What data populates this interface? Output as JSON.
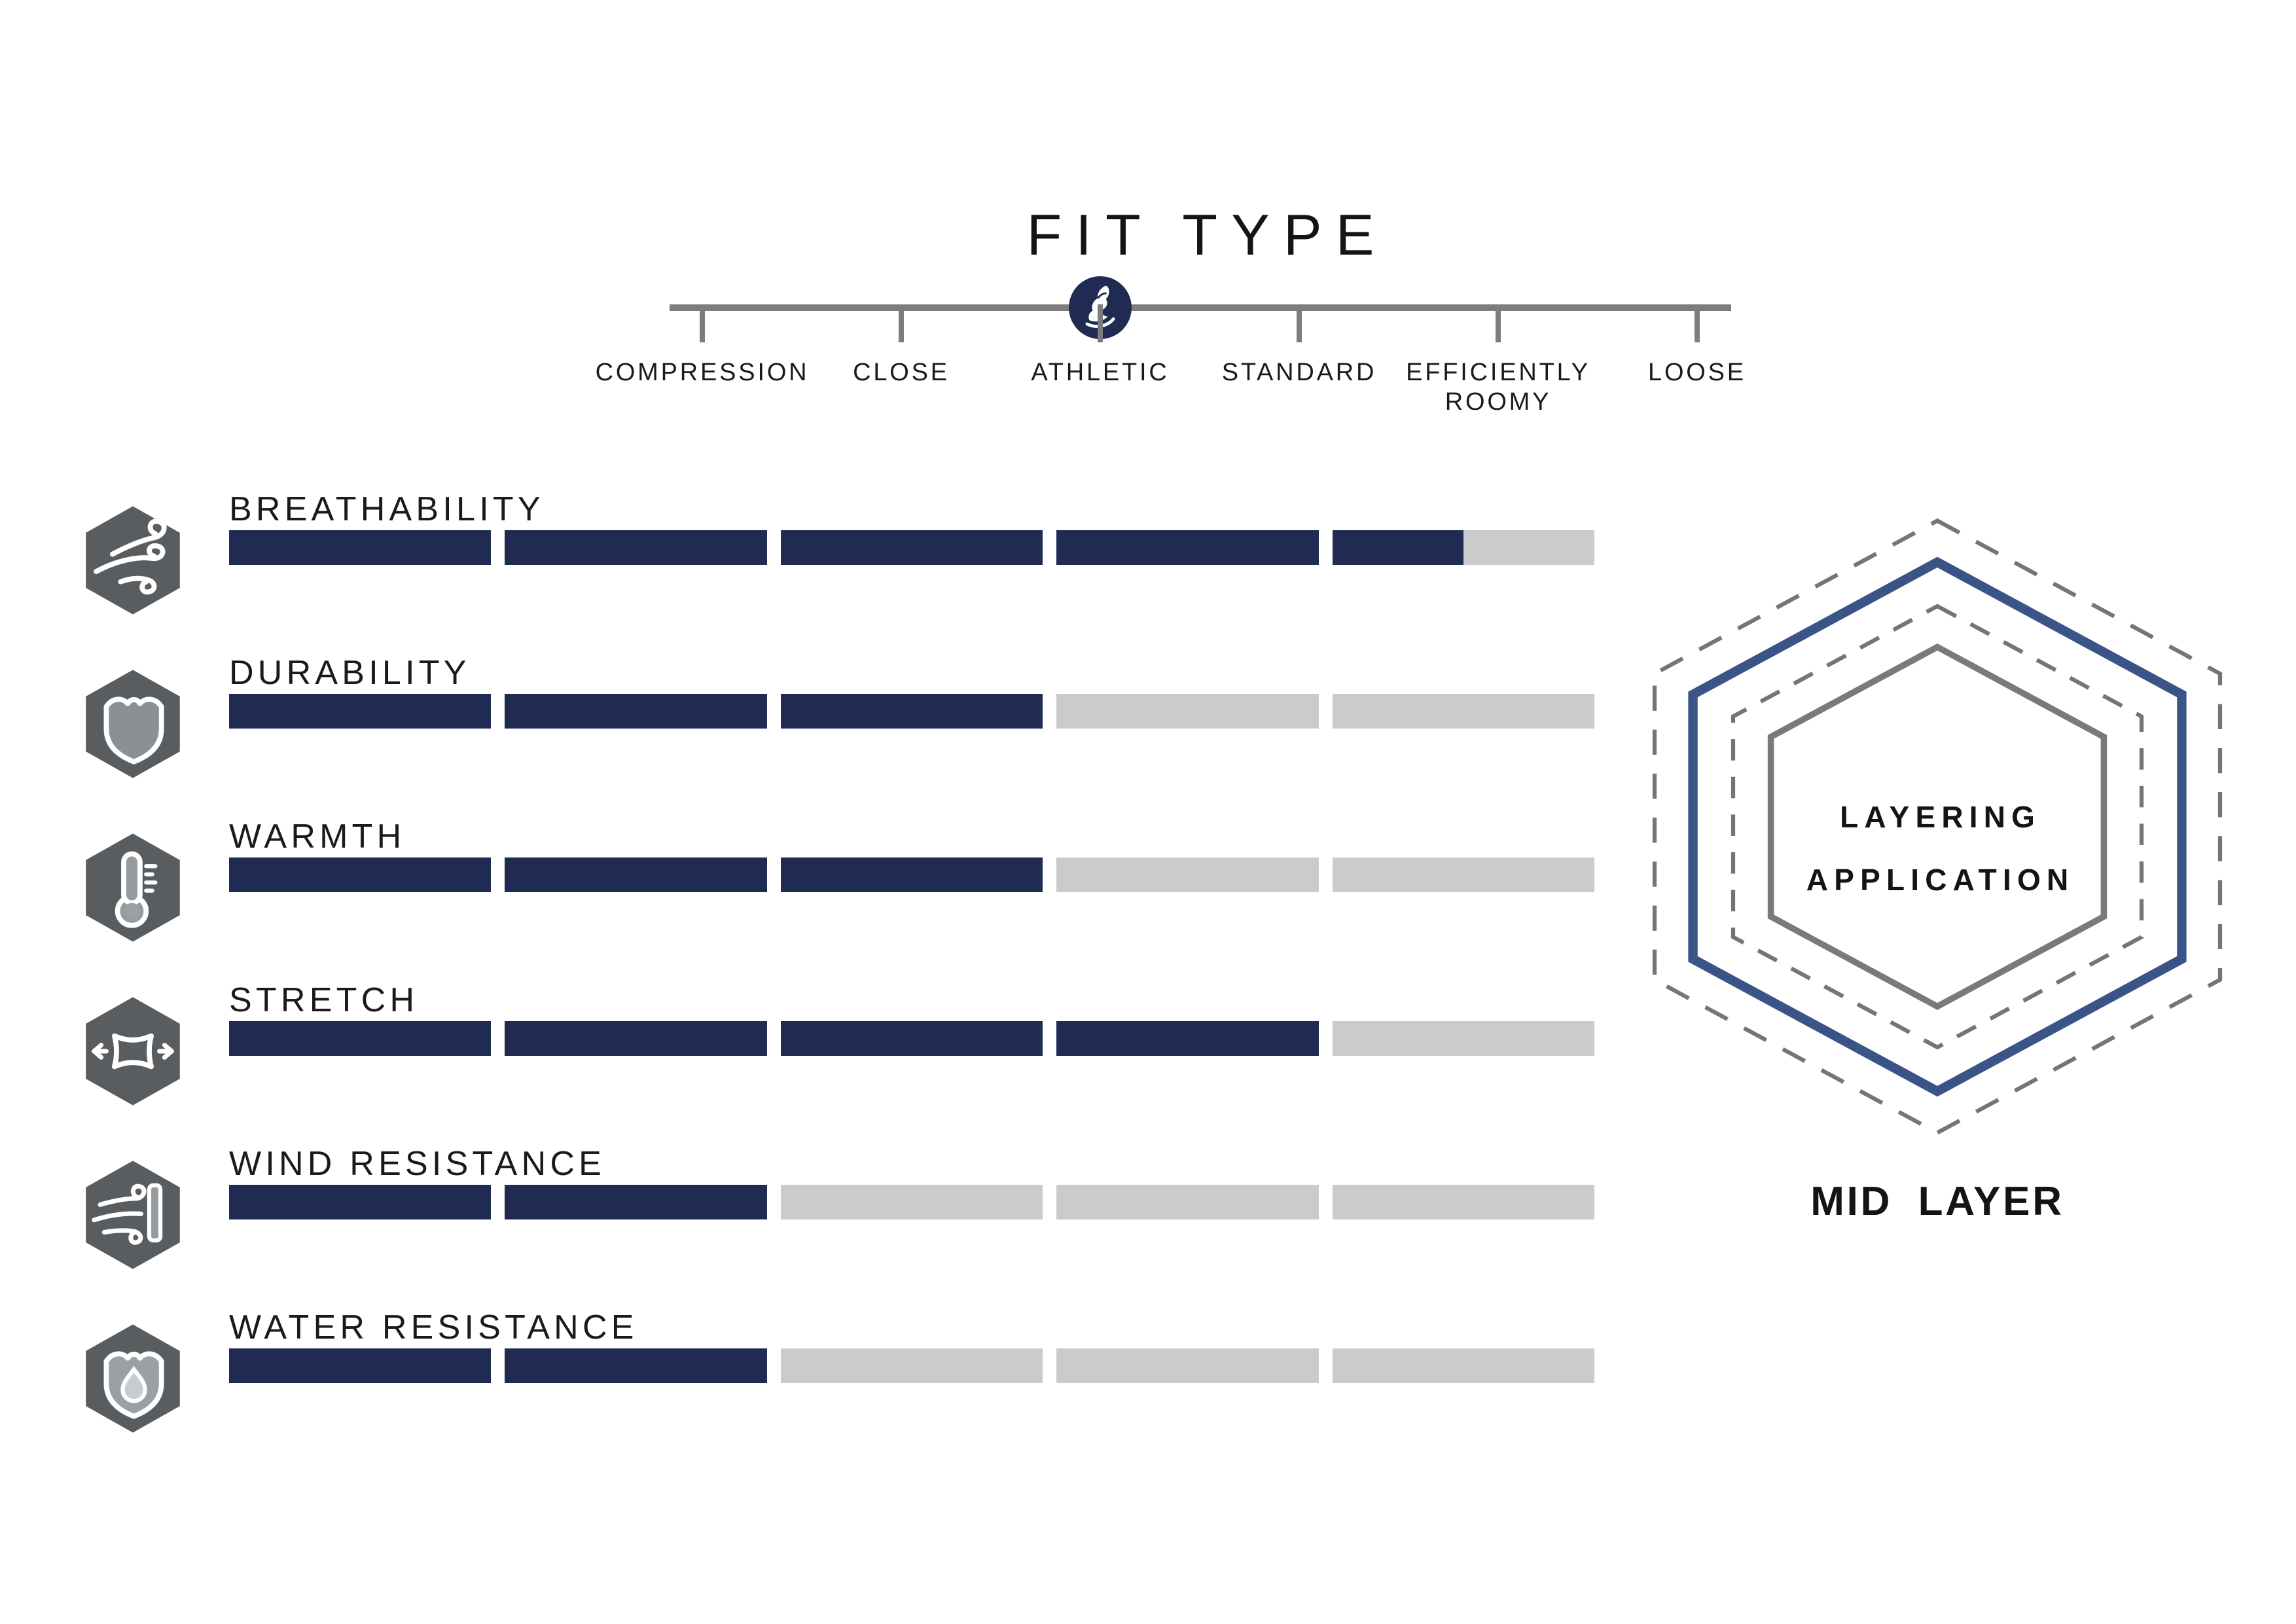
{
  "fit_type": {
    "title": "FIT TYPE",
    "options": [
      "COMPRESSION",
      "CLOSE",
      "ATHLETIC",
      "STANDARD",
      "EFFICIENTLY ROOMY",
      "LOOSE"
    ],
    "selected": "ATHLETIC",
    "marker_icon": "owl-logo-icon",
    "colors": {
      "line": "#7d7d7d",
      "marker": "#1f2b52"
    }
  },
  "attributes": {
    "scale_max": 5,
    "items": [
      {
        "label": "BREATHABILITY",
        "value": 4.5,
        "icon": "wind-icon"
      },
      {
        "label": "DURABILITY",
        "value": 3,
        "icon": "shield-icon"
      },
      {
        "label": "WARMTH",
        "value": 3,
        "icon": "thermometer-icon"
      },
      {
        "label": "STRETCH",
        "value": 4,
        "icon": "stretch-icon"
      },
      {
        "label": "WIND RESISTANCE",
        "value": 2,
        "icon": "wind-block-icon"
      },
      {
        "label": "WATER RESISTANCE",
        "value": 2,
        "icon": "water-shield-icon"
      }
    ],
    "colors": {
      "filled": "#1f2b52",
      "empty": "#cbcbcb",
      "icon_bg": "#595d60"
    }
  },
  "layering": {
    "title_line1": "LAYERING",
    "title_line2": "APPLICATION",
    "label": "MID LAYER",
    "rings": [
      "outer-dashed-gray",
      "solid-navy",
      "inner-dashed-gray",
      "inner-solid-gray"
    ],
    "colors": {
      "navy": "#3a5488",
      "gray": "#7a7a7a",
      "dashed": "#757575"
    }
  },
  "chart_data": {
    "type": "bar",
    "title": "Attribute ratings (segments filled out of 5)",
    "categories": [
      "BREATHABILITY",
      "DURABILITY",
      "WARMTH",
      "STRETCH",
      "WIND RESISTANCE",
      "WATER RESISTANCE"
    ],
    "values": [
      4.5,
      3,
      3,
      4,
      2,
      2
    ],
    "xlabel": "",
    "ylabel": "",
    "ylim": [
      0,
      5
    ]
  }
}
